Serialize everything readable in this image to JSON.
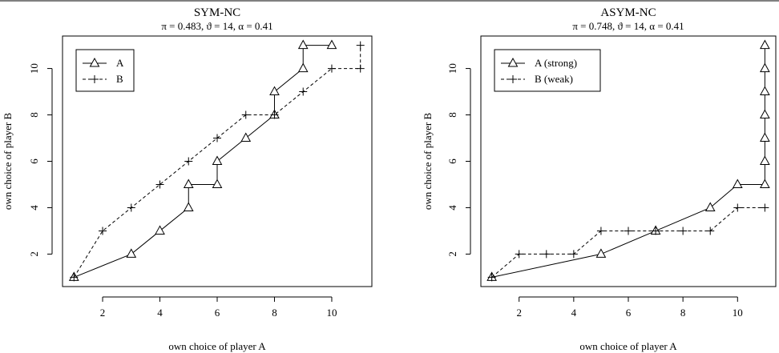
{
  "chart_data": [
    {
      "type": "line",
      "title": "SYM-NC",
      "subtitle": "π = 0.483, ϑ = 14, α = 0.41",
      "xlabel": "own choice of player A",
      "ylabel": "own choice of player B",
      "xlim": [
        0.6,
        11.4
      ],
      "ylim": [
        0.6,
        11.4
      ],
      "xticks": [
        2,
        4,
        6,
        8,
        10
      ],
      "yticks": [
        2,
        4,
        6,
        8,
        10
      ],
      "legend_position": "top-left",
      "series": [
        {
          "name": "A",
          "marker": "triangle",
          "line": "solid",
          "points": [
            [
              1,
              1
            ],
            [
              3,
              2
            ],
            [
              4,
              3
            ],
            [
              5,
              4
            ],
            [
              5,
              5
            ],
            [
              6,
              5
            ],
            [
              6,
              6
            ],
            [
              7,
              7
            ],
            [
              8,
              8
            ],
            [
              8,
              9
            ],
            [
              9,
              10
            ],
            [
              9,
              11
            ],
            [
              10,
              11
            ]
          ]
        },
        {
          "name": "B",
          "marker": "plus",
          "line": "dashed",
          "points": [
            [
              1,
              1
            ],
            [
              2,
              3
            ],
            [
              3,
              4
            ],
            [
              4,
              5
            ],
            [
              5,
              6
            ],
            [
              6,
              7
            ],
            [
              7,
              8
            ],
            [
              8,
              8
            ],
            [
              9,
              9
            ],
            [
              10,
              10
            ],
            [
              11,
              10
            ],
            [
              11,
              11
            ]
          ]
        }
      ]
    },
    {
      "type": "line",
      "title": "ASYM-NC",
      "subtitle": "π = 0.748, ϑ = 14, α = 0.41",
      "xlabel": "own choice of player A",
      "ylabel": "own choice of player B",
      "xlim": [
        0.6,
        11.4
      ],
      "ylim": [
        0.6,
        11.4
      ],
      "xticks": [
        2,
        4,
        6,
        8,
        10
      ],
      "yticks": [
        2,
        4,
        6,
        8,
        10
      ],
      "legend_position": "top-left",
      "series": [
        {
          "name": "A (strong)",
          "marker": "triangle",
          "line": "solid",
          "points": [
            [
              1,
              1
            ],
            [
              5,
              2
            ],
            [
              7,
              3
            ],
            [
              9,
              4
            ],
            [
              10,
              5
            ],
            [
              11,
              5
            ],
            [
              11,
              6
            ],
            [
              11,
              7
            ],
            [
              11,
              8
            ],
            [
              11,
              9
            ],
            [
              11,
              10
            ],
            [
              11,
              11
            ]
          ]
        },
        {
          "name": "B (weak)",
          "marker": "plus",
          "line": "dashed",
          "points": [
            [
              1,
              1
            ],
            [
              2,
              2
            ],
            [
              3,
              2
            ],
            [
              4,
              2
            ],
            [
              5,
              3
            ],
            [
              6,
              3
            ],
            [
              7,
              3
            ],
            [
              8,
              3
            ],
            [
              9,
              3
            ],
            [
              10,
              4
            ],
            [
              11,
              4
            ]
          ]
        }
      ]
    }
  ]
}
